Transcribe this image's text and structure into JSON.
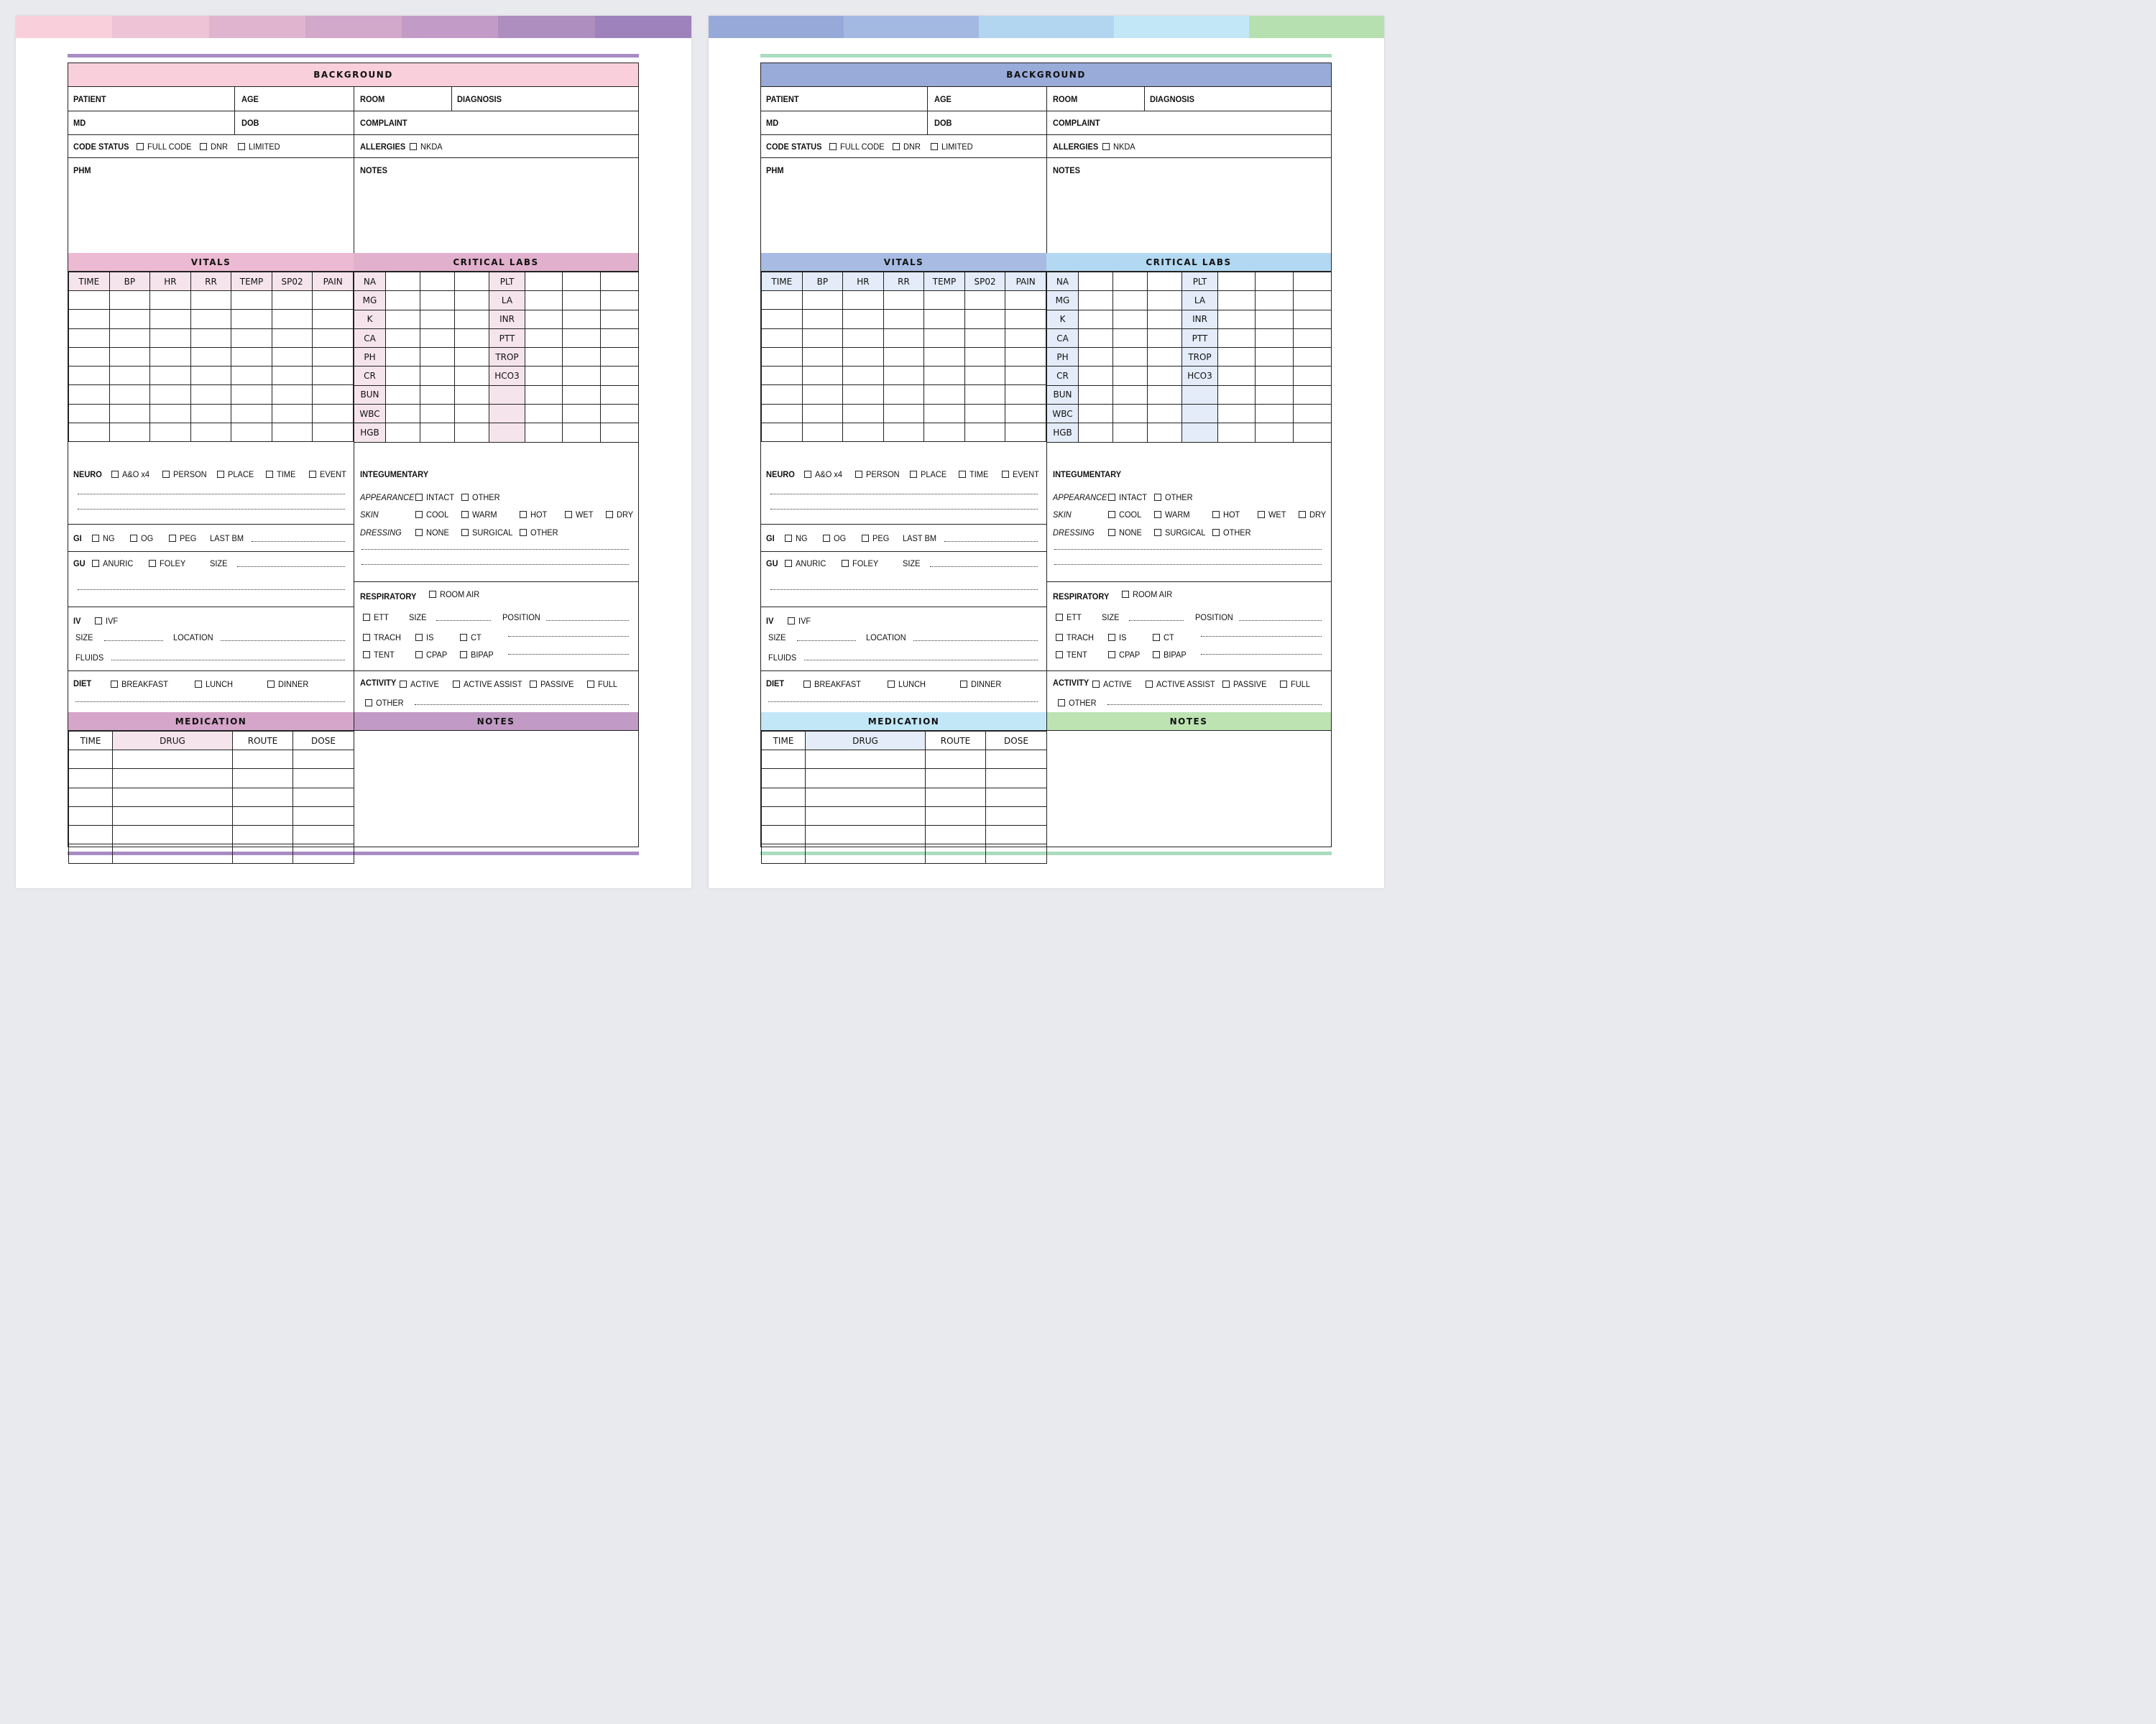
{
  "sheets": [
    {
      "theme": "pink-purple",
      "strip_colors": [
        "#f9cfdc",
        "#eec3d5",
        "#e0b4cf",
        "#d2a8cb",
        "#c29bc6",
        "#ae8dbf",
        "#9d82bb"
      ],
      "accent_rule": "#a88cc3",
      "background_header": "#f9cfdc",
      "vitals_header": "#ecbad2",
      "labs_header": "#e0b0cc",
      "col_header_fill": "#f5e4ec",
      "medication_header": "#d5a6c9",
      "notes_header": "#c19ac5"
    },
    {
      "theme": "blue-green",
      "strip_colors": [
        "#96a9d8",
        "#a3b9e2",
        "#b3d6f0",
        "#c2e8f8",
        "#b7e0b0"
      ],
      "accent_rule": "#a9dcc0",
      "background_header": "#99abd9",
      "vitals_header": "#a8bce3",
      "labs_header": "#b3d8f1",
      "col_header_fill": "#e3ecf8",
      "medication_header": "#c2e8f8",
      "notes_header": "#bde3b3"
    }
  ],
  "labels": {
    "background": "BACKGROUND",
    "patient": "PATIENT",
    "age": "AGE",
    "room": "ROOM",
    "diagnosis": "DIAGNOSIS",
    "md": "MD",
    "dob": "DOB",
    "complaint": "COMPLAINT",
    "code_status": "CODE STATUS",
    "full_code": "FULL CODE",
    "dnr": "DNR",
    "limited": "LIMITED",
    "allergies": "ALLERGIES",
    "nkda": "NKDA",
    "phm": "PHM",
    "notes": "NOTES",
    "vitals": "VITALS",
    "critical_labs": "CRITICAL LABS",
    "neuro": "NEURO",
    "ao": "A&O x4",
    "person": "PERSON",
    "place": "PLACE",
    "time": "TIME",
    "event": "EVENT",
    "gi": "GI",
    "ng": "NG",
    "og": "OG",
    "peg": "PEG",
    "last_bm": "LAST BM",
    "gu": "GU",
    "anuric": "ANURIC",
    "foley": "FOLEY",
    "size": "SIZE",
    "iv": "IV",
    "ivf": "IVF",
    "location": "LOCATION",
    "fluids": "FLUIDS",
    "diet": "DIET",
    "breakfast": "BREAKFAST",
    "lunch": "LUNCH",
    "dinner": "DINNER",
    "integumentary": "INTEGUMENTARY",
    "appearance": "APPEARANCE",
    "intact": "INTACT",
    "other": "OTHER",
    "skin": "SKIN",
    "cool": "COOL",
    "warm": "WARM",
    "hot": "HOT",
    "wet": "WET",
    "dry": "DRY",
    "dressing": "DRESSING",
    "none": "NONE",
    "surgical": "SURGICAL",
    "respiratory": "RESPIRATORY",
    "room_air": "ROOM AIR",
    "ett": "ETT",
    "position": "POSITION",
    "trach": "TRACH",
    "is": "IS",
    "ct": "CT",
    "tent": "TENT",
    "cpap": "CPAP",
    "bipap": "BIPAP",
    "activity": "ACTIVITY",
    "active": "ACTIVE",
    "active_assist": "ACTIVE ASSIST",
    "passive": "PASSIVE",
    "full": "FULL",
    "medication": "MEDICATION"
  },
  "vitals_columns": [
    "TIME",
    "BP",
    "HR",
    "RR",
    "TEMP",
    "SP02",
    "PAIN"
  ],
  "labs_left": [
    "NA",
    "MG",
    "K",
    "CA",
    "PH",
    "CR",
    "BUN",
    "WBC",
    "HGB"
  ],
  "labs_right": [
    "PLT",
    "LA",
    "INR",
    "PTT",
    "TROP",
    "HCO3",
    "",
    "",
    ""
  ],
  "medication_columns": [
    "TIME",
    "DRUG",
    "ROUTE",
    "DOSE"
  ]
}
